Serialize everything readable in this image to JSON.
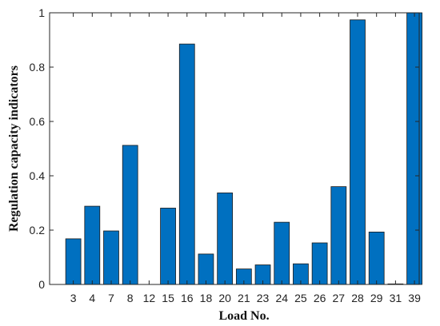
{
  "chart_data": {
    "type": "bar",
    "title": "",
    "xlabel": "Load No.",
    "ylabel": "Regulation capacity indicators",
    "categories": [
      "3",
      "4",
      "7",
      "8",
      "12",
      "15",
      "16",
      "18",
      "20",
      "21",
      "23",
      "24",
      "25",
      "26",
      "27",
      "28",
      "29",
      "31",
      "39"
    ],
    "values": [
      0.168,
      0.288,
      0.197,
      0.512,
      0.0,
      0.281,
      0.885,
      0.112,
      0.337,
      0.057,
      0.072,
      0.229,
      0.076,
      0.153,
      0.36,
      0.974,
      0.193,
      0.002,
      1.0
    ],
    "ylim": [
      0,
      1
    ],
    "yticks": [
      0,
      0.2,
      0.4,
      0.6,
      0.8,
      1
    ],
    "ytick_labels": [
      "0",
      "0.2",
      "0.4",
      "0.6",
      "0.8",
      "1"
    ],
    "grid": false,
    "bar_color": "#0070C0",
    "bar_edge_color": "#1a1a1a"
  }
}
